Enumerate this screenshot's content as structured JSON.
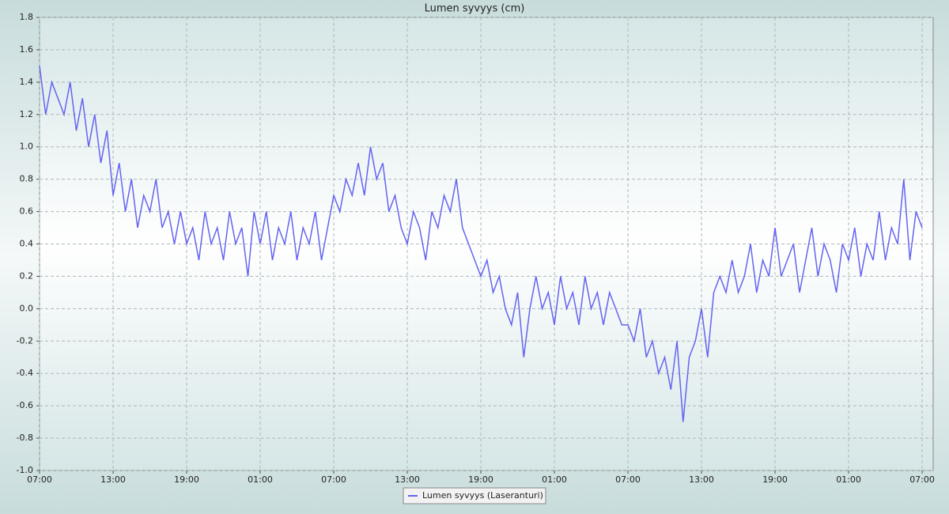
{
  "chart_data": {
    "type": "line",
    "title": "Lumen syvyys (cm)",
    "series": [
      {
        "name": "Lumen syvyys (Laseranturi)",
        "color": "#6464f0",
        "x": [
          0,
          0.5,
          1,
          1.5,
          2,
          2.5,
          3,
          3.5,
          4,
          4.5,
          5,
          5.5,
          6,
          6.5,
          7,
          7.5,
          8,
          8.5,
          9,
          9.5,
          10,
          10.5,
          11,
          11.5,
          12,
          12.5,
          13,
          13.5,
          14,
          14.5,
          15,
          15.5,
          16,
          16.5,
          17,
          17.5,
          18,
          18.5,
          19,
          19.5,
          20,
          20.5,
          21,
          21.5,
          22,
          22.5,
          23,
          23.5,
          24,
          24.5,
          25,
          25.5,
          26,
          26.5,
          27,
          27.5,
          28,
          28.5,
          29,
          29.5,
          30,
          30.5,
          31,
          31.5,
          32,
          32.5,
          33,
          33.5,
          34,
          34.5,
          35,
          35.5,
          36,
          36.5,
          37,
          37.5,
          38,
          38.5,
          39,
          39.5,
          40,
          40.5,
          41,
          41.5,
          42,
          42.5,
          43,
          43.5,
          44,
          44.5,
          45,
          45.5,
          46,
          46.5,
          47,
          47.5,
          48,
          48.5,
          49,
          49.5,
          50,
          50.5,
          51,
          51.5,
          52,
          52.5,
          53,
          53.5,
          54,
          54.5,
          55,
          55.5,
          56,
          56.5,
          57,
          57.5,
          58,
          58.5,
          59,
          59.5,
          60,
          60.5,
          61,
          61.5,
          62,
          62.5,
          63,
          63.5,
          64,
          64.5,
          65,
          65.5,
          66,
          66.5,
          67,
          67.5,
          68,
          68.5,
          69,
          69.5,
          70,
          70.5,
          71,
          71.5,
          72
        ],
        "values": [
          1.5,
          1.2,
          1.4,
          1.3,
          1.2,
          1.4,
          1.1,
          1.3,
          1.0,
          1.2,
          0.9,
          1.1,
          0.7,
          0.9,
          0.6,
          0.8,
          0.5,
          0.7,
          0.6,
          0.8,
          0.5,
          0.6,
          0.4,
          0.6,
          0.4,
          0.5,
          0.3,
          0.6,
          0.4,
          0.5,
          0.3,
          0.6,
          0.4,
          0.5,
          0.2,
          0.6,
          0.4,
          0.6,
          0.3,
          0.5,
          0.4,
          0.6,
          0.3,
          0.5,
          0.4,
          0.6,
          0.3,
          0.5,
          0.7,
          0.6,
          0.8,
          0.7,
          0.9,
          0.7,
          1.0,
          0.8,
          0.9,
          0.6,
          0.7,
          0.5,
          0.4,
          0.6,
          0.5,
          0.3,
          0.6,
          0.5,
          0.7,
          0.6,
          0.8,
          0.5,
          0.4,
          0.3,
          0.2,
          0.3,
          0.1,
          0.2,
          0.0,
          -0.1,
          0.1,
          -0.3,
          0.0,
          0.2,
          0.0,
          0.1,
          -0.1,
          0.2,
          0.0,
          0.1,
          -0.1,
          0.2,
          0.0,
          0.1,
          -0.1,
          0.1,
          0.0,
          -0.1,
          -0.1,
          -0.2,
          0.0,
          -0.3,
          -0.2,
          -0.4,
          -0.3,
          -0.5,
          -0.2,
          -0.7,
          -0.3,
          -0.2,
          0.0,
          -0.3,
          0.1,
          0.2,
          0.1,
          0.3,
          0.1,
          0.2,
          0.4,
          0.1,
          0.3,
          0.2,
          0.5,
          0.2,
          0.3,
          0.4,
          0.1,
          0.3,
          0.5,
          0.2,
          0.4,
          0.3,
          0.1,
          0.4,
          0.3,
          0.5,
          0.2,
          0.4,
          0.3,
          0.6,
          0.3,
          0.5,
          0.4,
          0.8,
          0.3,
          0.6,
          0.5
        ]
      }
    ],
    "xlim": [
      0,
      72.9
    ],
    "xticks": [
      {
        "value": 0,
        "label": "07:00"
      },
      {
        "value": 6,
        "label": "13:00"
      },
      {
        "value": 12,
        "label": "19:00"
      },
      {
        "value": 18,
        "label": "01:00"
      },
      {
        "value": 24,
        "label": "07:00"
      },
      {
        "value": 30,
        "label": "13:00"
      },
      {
        "value": 36,
        "label": "19:00"
      },
      {
        "value": 42,
        "label": "01:00"
      },
      {
        "value": 48,
        "label": "07:00"
      },
      {
        "value": 54,
        "label": "13:00"
      },
      {
        "value": 60,
        "label": "19:00"
      },
      {
        "value": 66,
        "label": "01:00"
      },
      {
        "value": 72,
        "label": "07:00"
      }
    ],
    "ylim": [
      -1.0,
      1.8
    ],
    "yticks": [
      {
        "value": -1.0,
        "label": "-1.0"
      },
      {
        "value": -0.8,
        "label": "-0.8"
      },
      {
        "value": -0.6,
        "label": "-0.6"
      },
      {
        "value": -0.4,
        "label": "-0.4"
      },
      {
        "value": -0.2,
        "label": "-0.2"
      },
      {
        "value": 0.0,
        "label": "0.0"
      },
      {
        "value": 0.2,
        "label": "0.2"
      },
      {
        "value": 0.4,
        "label": "0.4"
      },
      {
        "value": 0.6,
        "label": "0.6"
      },
      {
        "value": 0.8,
        "label": "0.8"
      },
      {
        "value": 1.0,
        "label": "1.0"
      },
      {
        "value": 1.2,
        "label": "1.2"
      },
      {
        "value": 1.4,
        "label": "1.4"
      },
      {
        "value": 1.6,
        "label": "1.6"
      },
      {
        "value": 1.8,
        "label": "1.8"
      }
    ],
    "grid": true,
    "legend": "bottom"
  }
}
